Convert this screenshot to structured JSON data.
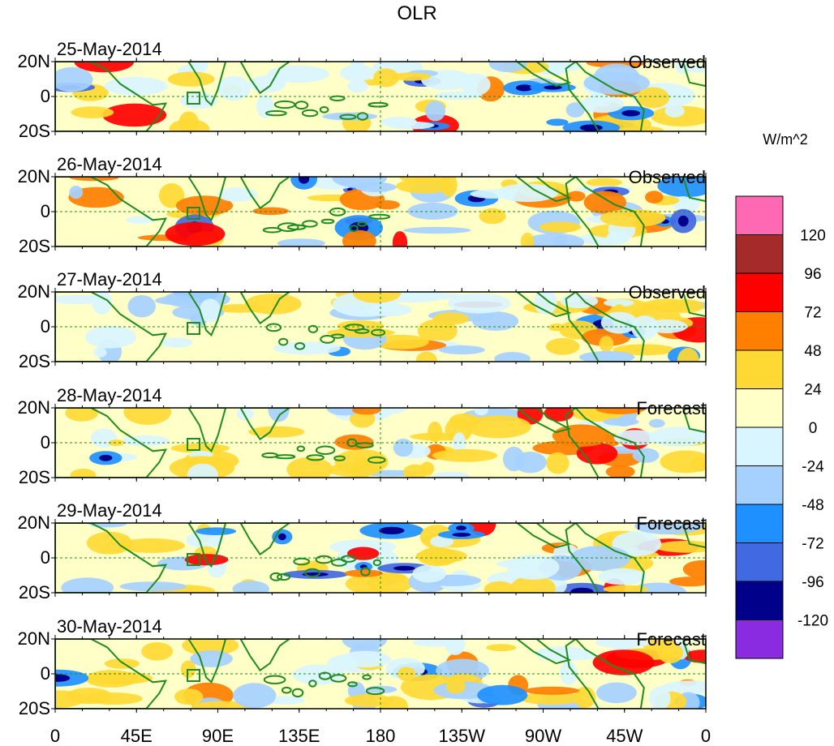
{
  "title": "OLR",
  "units_label": "W/m^2",
  "lat_labels": [
    "20N",
    "0",
    "20S"
  ],
  "lon_ticks": [
    "0",
    "45E",
    "90E",
    "135E",
    "180",
    "135W",
    "90W",
    "45W",
    "0"
  ],
  "panels": [
    {
      "date": "25-May-2014",
      "kind": "Observed"
    },
    {
      "date": "26-May-2014",
      "kind": "Observed"
    },
    {
      "date": "27-May-2014",
      "kind": "Observed"
    },
    {
      "date": "28-May-2014",
      "kind": "Forecast"
    },
    {
      "date": "29-May-2014",
      "kind": "Forecast"
    },
    {
      "date": "30-May-2014",
      "kind": "Forecast"
    }
  ],
  "colorbar": {
    "labels": [
      "120",
      "96",
      "72",
      "48",
      "24",
      "0",
      "-24",
      "-48",
      "-72",
      "-96",
      "-120"
    ],
    "colors": [
      "#ff69b4",
      "#a52a2a",
      "#ff0000",
      "#ff7f00",
      "#ffd933",
      "#ffffc8",
      "#d9f5ff",
      "#a6d1ff",
      "#1e90ff",
      "#4169e1",
      "#00008b",
      "#8a2be2"
    ]
  },
  "colors": {
    "coast": "#1e8c1e",
    "ocean_background": "#ffffc8",
    "box_outline": "#1e8c1e"
  }
}
